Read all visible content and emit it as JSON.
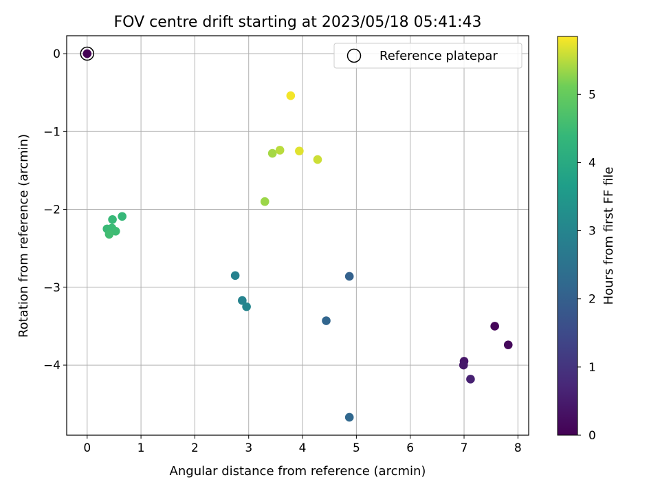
{
  "chart_data": {
    "type": "scatter",
    "title": "FOV centre drift starting at 2023/05/18 05:41:43",
    "xlabel": "Angular distance from reference (arcmin)",
    "ylabel": "Rotation from reference (arcmin)",
    "xlim": [
      -0.38,
      8.2
    ],
    "ylim": [
      -4.9,
      0.23
    ],
    "xticks": [
      0,
      1,
      2,
      3,
      4,
      5,
      6,
      7,
      8
    ],
    "yticks": [
      0,
      -1,
      -2,
      -3,
      -4
    ],
    "grid": true,
    "legend": {
      "placement": "top-right",
      "entries": [
        "Reference platepar"
      ]
    },
    "colorbar": {
      "label": "Hours from first FF file",
      "range": [
        0,
        5.85
      ],
      "ticks": [
        0,
        1,
        2,
        3,
        4,
        5
      ],
      "colormap": "viridis"
    },
    "reference_point": {
      "x": 0,
      "y": 0
    },
    "points": [
      {
        "x": 0.0,
        "y": 0.0,
        "hours": 0.0
      },
      {
        "x": 7.57,
        "y": -3.5,
        "hours": 0.1
      },
      {
        "x": 7.82,
        "y": -3.74,
        "hours": 0.15
      },
      {
        "x": 7.0,
        "y": -3.95,
        "hours": 0.4
      },
      {
        "x": 6.99,
        "y": -4.0,
        "hours": 0.45
      },
      {
        "x": 7.12,
        "y": -4.18,
        "hours": 0.6
      },
      {
        "x": 4.87,
        "y": -2.86,
        "hours": 2.05
      },
      {
        "x": 4.44,
        "y": -3.43,
        "hours": 2.15
      },
      {
        "x": 4.87,
        "y": -4.67,
        "hours": 2.2
      },
      {
        "x": 2.75,
        "y": -2.85,
        "hours": 2.9
      },
      {
        "x": 2.88,
        "y": -3.17,
        "hours": 2.95
      },
      {
        "x": 2.96,
        "y": -3.25,
        "hours": 3.0
      },
      {
        "x": 0.65,
        "y": -2.09,
        "hours": 4.4
      },
      {
        "x": 0.47,
        "y": -2.13,
        "hours": 4.42
      },
      {
        "x": 0.37,
        "y": -2.25,
        "hours": 4.45
      },
      {
        "x": 0.46,
        "y": -2.24,
        "hours": 4.47
      },
      {
        "x": 0.53,
        "y": -2.28,
        "hours": 4.5
      },
      {
        "x": 0.41,
        "y": -2.32,
        "hours": 4.55
      },
      {
        "x": 3.3,
        "y": -1.9,
        "hours": 5.35
      },
      {
        "x": 3.44,
        "y": -1.28,
        "hours": 5.4
      },
      {
        "x": 3.58,
        "y": -1.24,
        "hours": 5.5
      },
      {
        "x": 4.28,
        "y": -1.36,
        "hours": 5.6
      },
      {
        "x": 3.94,
        "y": -1.25,
        "hours": 5.7
      },
      {
        "x": 3.78,
        "y": -0.54,
        "hours": 5.8
      }
    ]
  }
}
